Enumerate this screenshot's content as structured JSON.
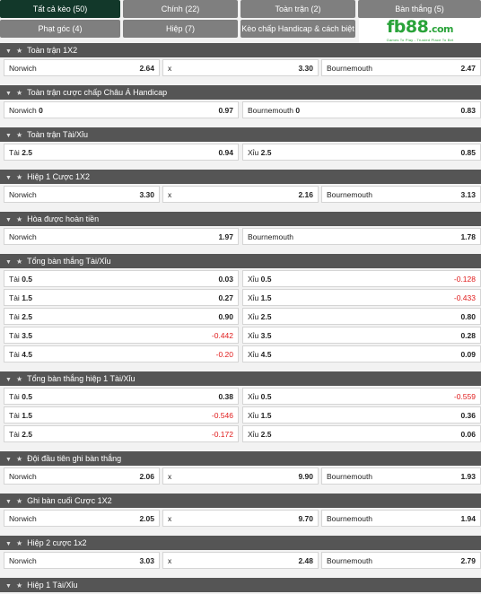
{
  "tabs": [
    {
      "label": "Tất cả kèo (50)",
      "active": true
    },
    {
      "label": "Chính (22)",
      "active": false
    },
    {
      "label": "Toàn trận (2)",
      "active": false
    },
    {
      "label": "Bàn thắng (5)",
      "active": false
    },
    {
      "label": "Phạt góc (4)",
      "active": false
    },
    {
      "label": "Hiệp (7)",
      "active": false
    },
    {
      "label": "Kèo chấp Handicap & cách biệt (1)",
      "active": false
    }
  ],
  "logo": {
    "brand": "fb88",
    "suffix": ".com",
    "tagline": "Games To Play - Trusted Place To Bet"
  },
  "sections": [
    {
      "title": "Toàn trận 1X2",
      "layout": "three",
      "rows": [
        [
          {
            "label": "Norwich",
            "line": "",
            "odd": "2.64"
          },
          {
            "label": "x",
            "line": "",
            "odd": "3.30"
          },
          {
            "label": "Bournemouth",
            "line": "",
            "odd": "2.47"
          }
        ]
      ]
    },
    {
      "title": "Toàn trận cược chấp Châu Á Handicap",
      "layout": "two",
      "rows": [
        [
          {
            "label": "Norwich",
            "line": "0",
            "odd": "0.97"
          },
          {
            "label": "Bournemouth",
            "line": "0",
            "odd": "0.83"
          }
        ]
      ]
    },
    {
      "title": "Toàn trận Tài/Xỉu",
      "layout": "two",
      "rows": [
        [
          {
            "label": "Tài",
            "line": "2.5",
            "odd": "0.94"
          },
          {
            "label": "Xỉu",
            "line": "2.5",
            "odd": "0.85"
          }
        ]
      ]
    },
    {
      "title": "Hiệp 1 Cược 1X2",
      "layout": "three",
      "rows": [
        [
          {
            "label": "Norwich",
            "line": "",
            "odd": "3.30"
          },
          {
            "label": "x",
            "line": "",
            "odd": "2.16"
          },
          {
            "label": "Bournemouth",
            "line": "",
            "odd": "3.13"
          }
        ]
      ]
    },
    {
      "title": "Hòa được hoàn tiền",
      "layout": "two",
      "rows": [
        [
          {
            "label": "Norwich",
            "line": "",
            "odd": "1.97"
          },
          {
            "label": "Bournemouth",
            "line": "",
            "odd": "1.78"
          }
        ]
      ]
    },
    {
      "title": "Tổng bàn thắng Tài/Xỉu",
      "layout": "two",
      "rows": [
        [
          {
            "label": "Tài",
            "line": "0.5",
            "odd": "0.03"
          },
          {
            "label": "Xỉu",
            "line": "0.5",
            "odd": "-0.128"
          }
        ],
        [
          {
            "label": "Tài",
            "line": "1.5",
            "odd": "0.27"
          },
          {
            "label": "Xỉu",
            "line": "1.5",
            "odd": "-0.433"
          }
        ],
        [
          {
            "label": "Tài",
            "line": "2.5",
            "odd": "0.90"
          },
          {
            "label": "Xỉu",
            "line": "2.5",
            "odd": "0.80"
          }
        ],
        [
          {
            "label": "Tài",
            "line": "3.5",
            "odd": "-0.442"
          },
          {
            "label": "Xỉu",
            "line": "3.5",
            "odd": "0.28"
          }
        ],
        [
          {
            "label": "Tài",
            "line": "4.5",
            "odd": "-0.20"
          },
          {
            "label": "Xỉu",
            "line": "4.5",
            "odd": "0.09"
          }
        ]
      ]
    },
    {
      "title": "Tổng bàn thắng hiệp 1 Tài/Xỉu",
      "layout": "two",
      "rows": [
        [
          {
            "label": "Tài",
            "line": "0.5",
            "odd": "0.38"
          },
          {
            "label": "Xỉu",
            "line": "0.5",
            "odd": "-0.559"
          }
        ],
        [
          {
            "label": "Tài",
            "line": "1.5",
            "odd": "-0.546"
          },
          {
            "label": "Xỉu",
            "line": "1.5",
            "odd": "0.36"
          }
        ],
        [
          {
            "label": "Tài",
            "line": "2.5",
            "odd": "-0.172"
          },
          {
            "label": "Xỉu",
            "line": "2.5",
            "odd": "0.06"
          }
        ]
      ]
    },
    {
      "title": "Đội đầu tiên ghi bàn thắng",
      "layout": "three",
      "rows": [
        [
          {
            "label": "Norwich",
            "line": "",
            "odd": "2.06"
          },
          {
            "label": "x",
            "line": "",
            "odd": "9.90"
          },
          {
            "label": "Bournemouth",
            "line": "",
            "odd": "1.93"
          }
        ]
      ]
    },
    {
      "title": "Ghi bàn cuối Cược 1X2",
      "layout": "three",
      "rows": [
        [
          {
            "label": "Norwich",
            "line": "",
            "odd": "2.05"
          },
          {
            "label": "x",
            "line": "",
            "odd": "9.70"
          },
          {
            "label": "Bournemouth",
            "line": "",
            "odd": "1.94"
          }
        ]
      ]
    },
    {
      "title": "Hiệp 2 cược 1x2",
      "layout": "three",
      "rows": [
        [
          {
            "label": "Norwich",
            "line": "",
            "odd": "3.03"
          },
          {
            "label": "x",
            "line": "",
            "odd": "2.48"
          },
          {
            "label": "Bournemouth",
            "line": "",
            "odd": "2.79"
          }
        ]
      ]
    },
    {
      "title": "Hiệp 1 Tài/Xỉu",
      "layout": "two",
      "rows": []
    }
  ],
  "colors": {
    "tab_active": "#12382a",
    "tab_inactive": "#7f7f7f",
    "header": "#555555",
    "negative": "#e01b1b",
    "logo": "#2aa33a"
  },
  "icons": {
    "caret": "caret-down-icon",
    "star": "star-icon"
  }
}
